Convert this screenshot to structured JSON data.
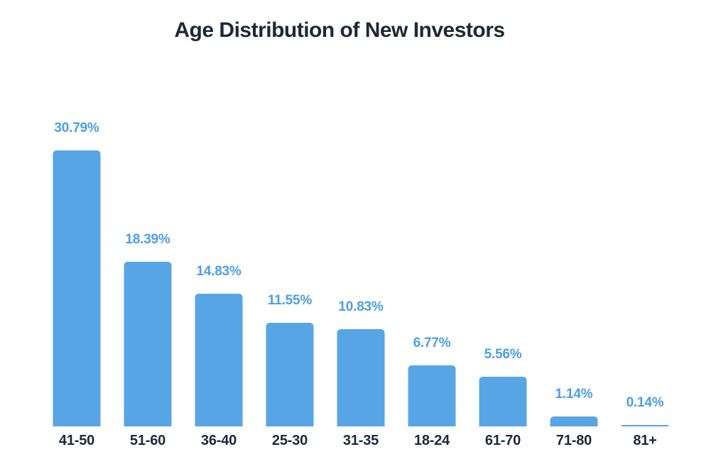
{
  "chart_data": {
    "type": "bar",
    "title": "Age Distribution of New Investors",
    "categories": [
      "41-50",
      "51-60",
      "36-40",
      "25-30",
      "31-35",
      "18-24",
      "61-70",
      "71-80",
      "81+"
    ],
    "values": [
      30.79,
      18.39,
      14.83,
      11.55,
      10.83,
      6.77,
      5.56,
      1.14,
      0.14
    ],
    "value_labels": [
      "30.79%",
      "18.39%",
      "14.83%",
      "11.55%",
      "10.83%",
      "6.77%",
      "5.56%",
      "1.14%",
      "0.14%"
    ],
    "xlabel": "",
    "ylabel": "",
    "ylim": [
      0,
      32
    ],
    "grid": false,
    "legend": false,
    "axis_lines": false,
    "value_labels_position": "above-bars",
    "sort_order": "descending",
    "colors": {
      "bar": "#58a5e5",
      "value_label": "#4c9ee6",
      "title": "#1d2936",
      "x_axis_label": "#1d2936",
      "background": "#ffffff"
    }
  }
}
